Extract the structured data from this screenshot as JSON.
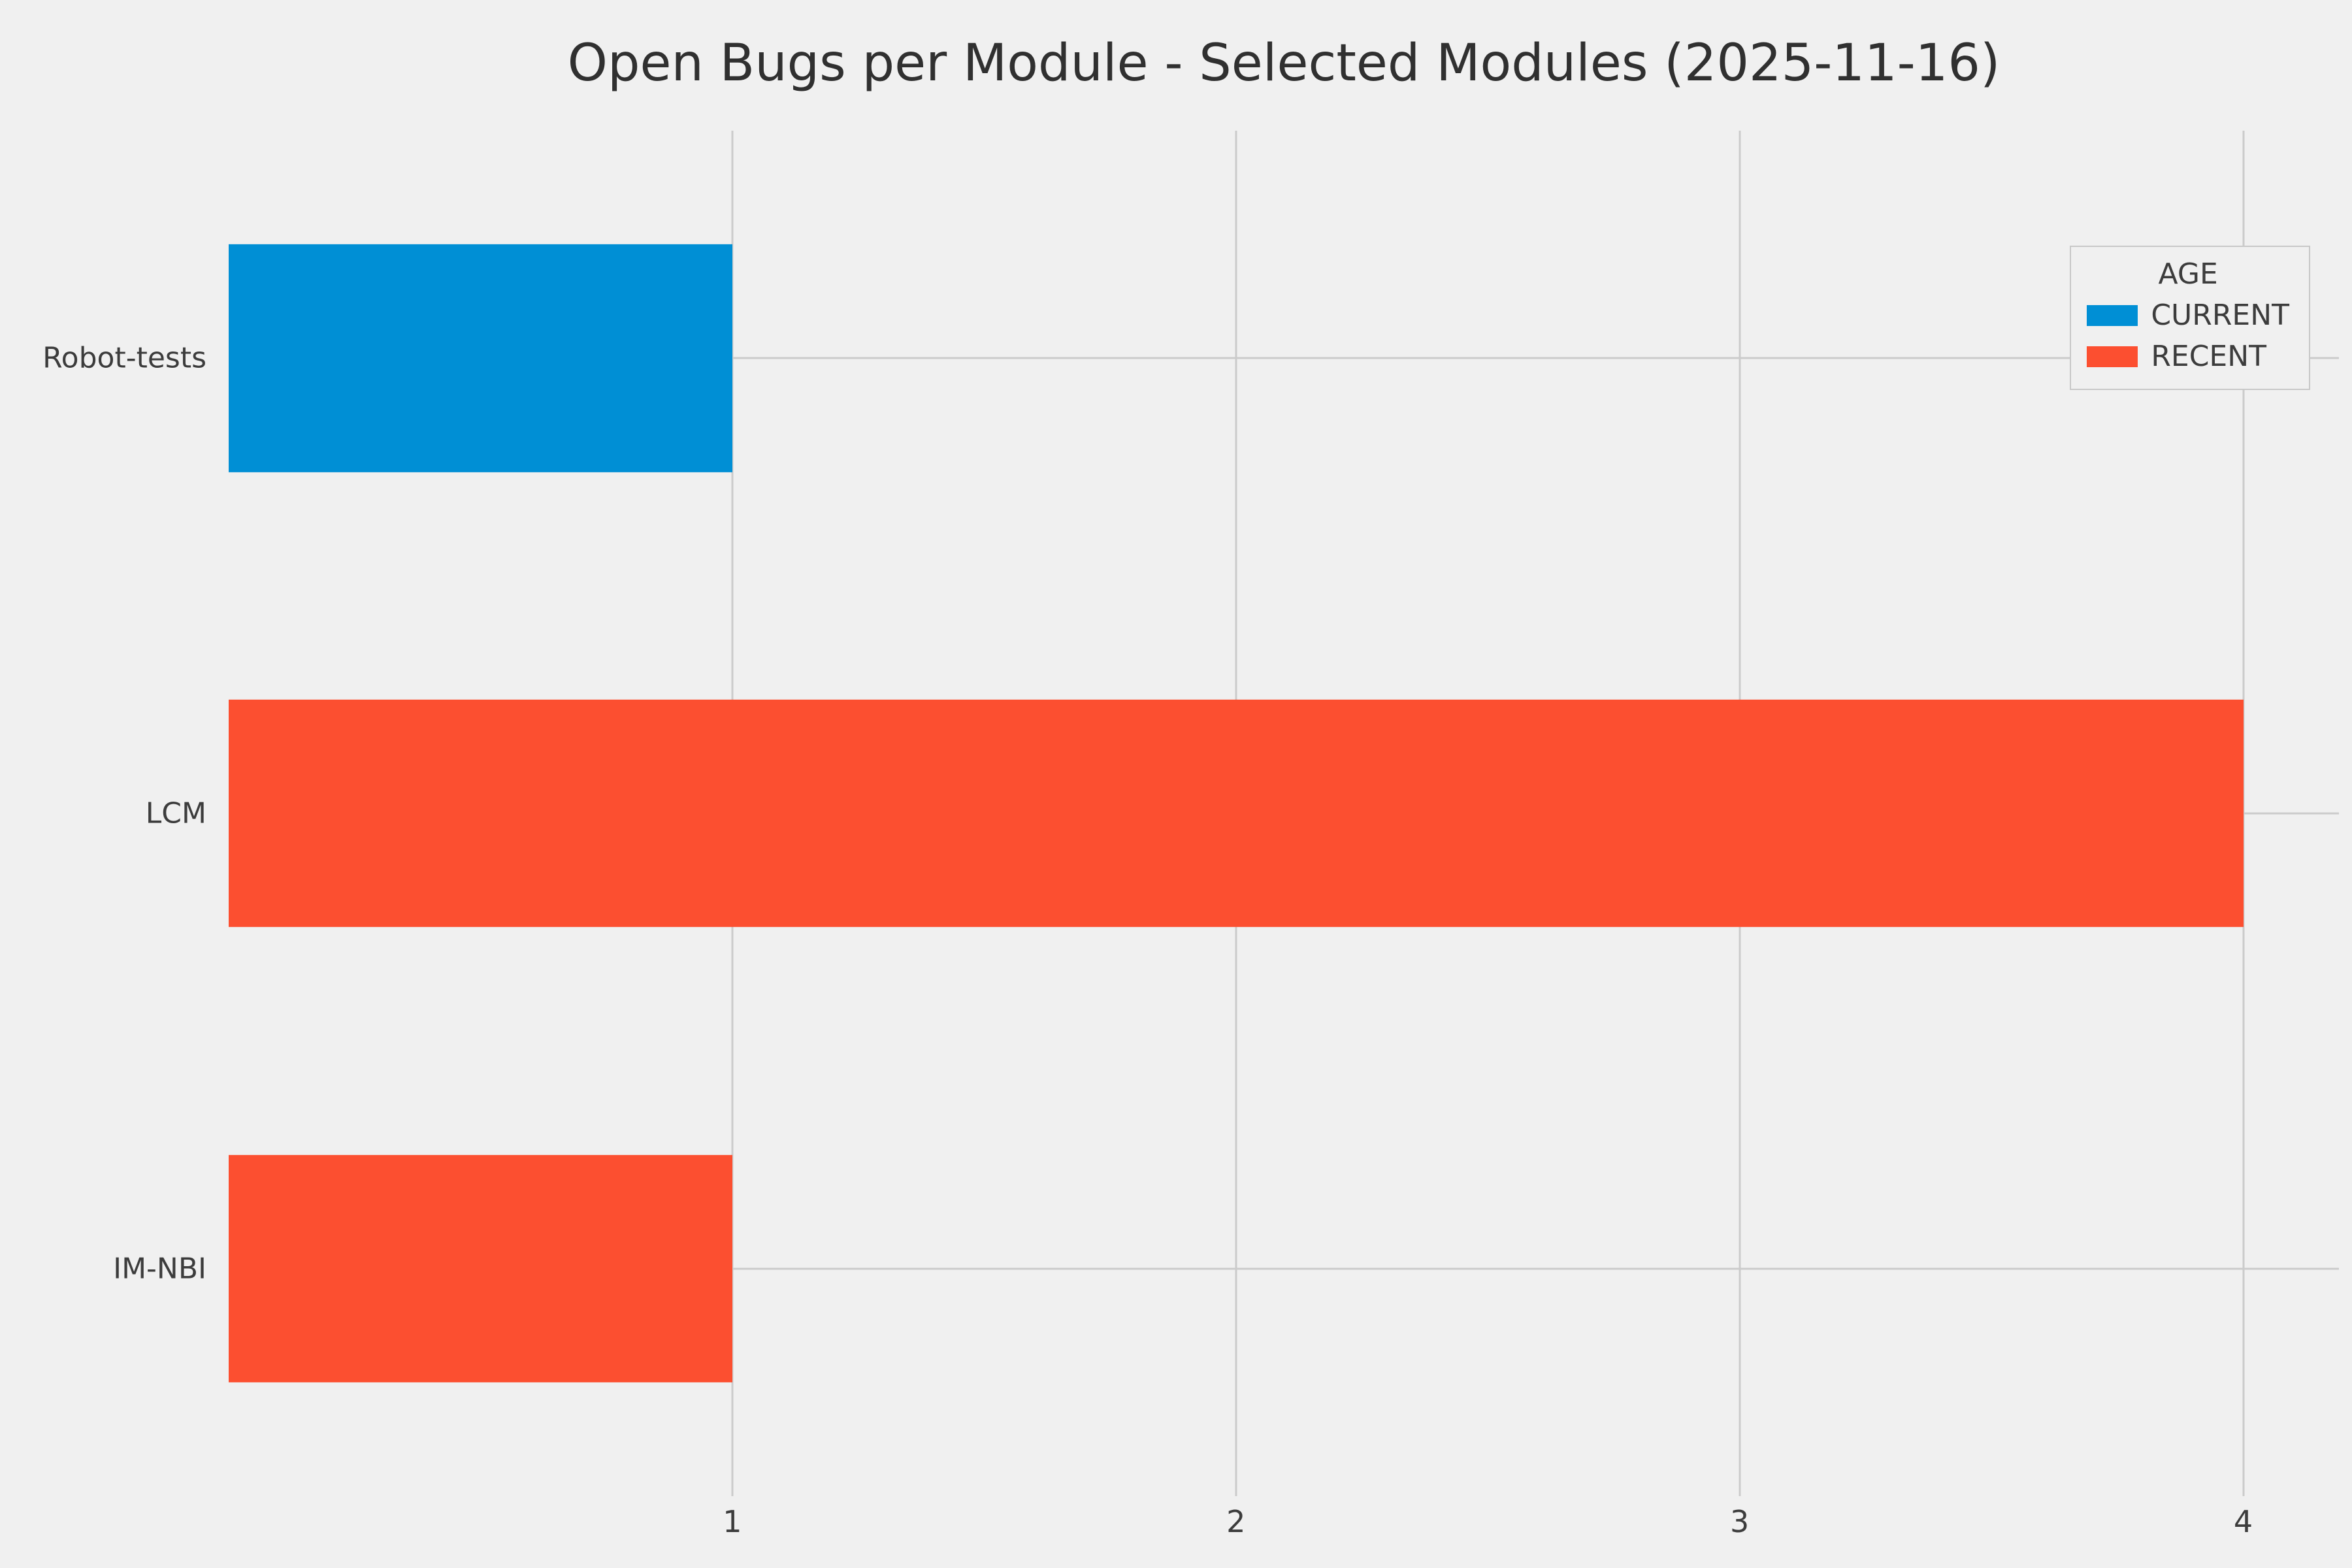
{
  "chart_data": {
    "type": "bar",
    "orientation": "horizontal",
    "title": "Open Bugs per Module - Selected Modules (2025-11-16)",
    "categories": [
      "Robot-tests",
      "LCM",
      "IM-NBI"
    ],
    "bars": [
      {
        "category": "Robot-tests",
        "value": 1,
        "series": "CURRENT"
      },
      {
        "category": "LCM",
        "value": 4,
        "series": "RECENT"
      },
      {
        "category": "IM-NBI",
        "value": 1,
        "series": "RECENT"
      }
    ],
    "series": [
      {
        "name": "CURRENT",
        "color": "#008fd5",
        "values": [
          1,
          0,
          0
        ]
      },
      {
        "name": "RECENT",
        "color": "#fc4f30",
        "values": [
          0,
          4,
          1
        ]
      }
    ],
    "legend": {
      "title": "AGE",
      "position": "upper right",
      "entries": [
        {
          "label": "CURRENT",
          "color": "#008fd5"
        },
        {
          "label": "RECENT",
          "color": "#fc4f30"
        }
      ]
    },
    "x_ticks": [
      "1",
      "2",
      "3",
      "4"
    ],
    "x_tick_values": [
      1,
      2,
      3,
      4
    ],
    "xlim": [
      0,
      4.19
    ],
    "xlabel": "",
    "ylabel": "",
    "grid": true,
    "bar_thickness_fraction": 0.5,
    "style": {
      "background": "#f0f0f0",
      "grid_color": "#cbcbcb",
      "text_color": "#3c3c3c"
    }
  }
}
